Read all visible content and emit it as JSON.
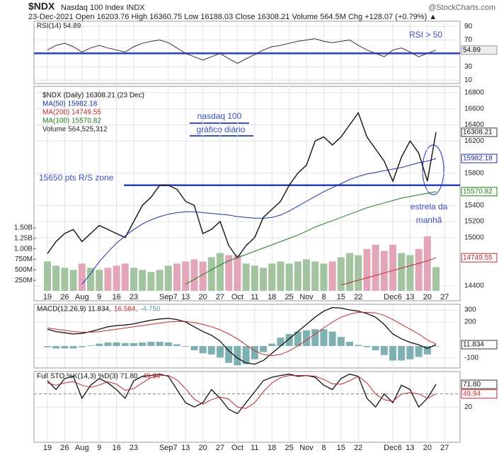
{
  "header": {
    "symbol": "$NDX",
    "name": "Nasdaq 100 Index INDX",
    "watermark": "@StockCharts.com",
    "quote": "23-Dec-2021   Open 16203.76  High 16360.75  Low 16188.03  Close 16308.21  Volume 564.5M  Chg +128.07 (+0.79%) ▲"
  },
  "chart_data": [
    {
      "type": "line",
      "label": "RSI(14) 54.89",
      "ylim": [
        5,
        98
      ],
      "yticks": [
        90,
        70,
        30,
        10
      ],
      "reference_line": 50,
      "reference_color": "#2b3fbf",
      "annotation": "RSI > 50",
      "series": [
        {
          "color": "#333333",
          "values": [
            55,
            62,
            65,
            60,
            52,
            58,
            62,
            58,
            55,
            52,
            60,
            65,
            68,
            70,
            66,
            58,
            50,
            45,
            40,
            45,
            50,
            42,
            35,
            42,
            48,
            55,
            60,
            62,
            65,
            68,
            70,
            72,
            68,
            66,
            68,
            70,
            62,
            55,
            50,
            45,
            55,
            58,
            52,
            45,
            50,
            54.89,
            null
          ]
        }
      ]
    },
    {
      "type": "line",
      "categories": [
        "19",
        null,
        "26",
        null,
        "Aug",
        null,
        "9",
        null,
        "16",
        null,
        "23",
        null,
        null,
        null,
        "Sep7",
        null,
        "13",
        null,
        "20",
        null,
        "27",
        null,
        "Oct",
        null,
        "11",
        null,
        "18",
        null,
        "25",
        null,
        "Nov",
        null,
        "8",
        null,
        "15",
        null,
        "22",
        null,
        null,
        null,
        "Dec6",
        null,
        "13",
        null,
        "20",
        null,
        "27"
      ],
      "ylim": [
        14215,
        16879
      ],
      "yticks": [
        16800,
        16600,
        16400,
        16200,
        15800,
        15400,
        15200,
        15000,
        14400
      ],
      "reference_line": 15650,
      "reference_color": "#2b3fbf",
      "annotations": [
        "nasdaq 100",
        "gráfico diário",
        "15650 pts R/S zone",
        "estrela da",
        "manhã"
      ],
      "series": [
        {
          "name": "$NDX (Daily) 16308.21 (23 Dec)",
          "color": "#111111",
          "values": [
            14800,
            14950,
            15050,
            15100,
            14950,
            15050,
            15150,
            15100,
            15050,
            15000,
            15200,
            15400,
            15500,
            15650,
            15650,
            15600,
            15450,
            15400,
            15050,
            15100,
            15200,
            14900,
            14750,
            14900,
            15000,
            15250,
            15350,
            15450,
            15650,
            15800,
            15900,
            16200,
            16250,
            16150,
            16250,
            16400,
            16550,
            16250,
            16100,
            15950,
            15700,
            16000,
            16200,
            16050,
            15700,
            16308.21,
            null
          ]
        },
        {
          "name": "MA(50) 15982.18",
          "color": "#1a2fa0",
          "values": [
            null,
            null,
            null,
            null,
            14420,
            14550,
            14700,
            14820,
            14930,
            15020,
            15100,
            15170,
            15220,
            15260,
            15290,
            15310,
            15320,
            15320,
            15310,
            15300,
            15290,
            15280,
            15260,
            15250,
            15240,
            15240,
            15250,
            15280,
            15330,
            15390,
            15450,
            15510,
            15570,
            15620,
            15670,
            15720,
            15760,
            15790,
            15810,
            15830,
            15850,
            15870,
            15900,
            15930,
            15950,
            15982.18,
            null
          ]
        },
        {
          "name": "MA(200) 14749.55",
          "color": "#c0282e",
          "values": [
            null,
            null,
            null,
            null,
            null,
            null,
            null,
            null,
            null,
            null,
            null,
            null,
            null,
            null,
            null,
            null,
            null,
            null,
            null,
            null,
            null,
            null,
            null,
            null,
            null,
            null,
            null,
            null,
            null,
            null,
            null,
            null,
            null,
            null,
            14410,
            14440,
            14470,
            14500,
            14530,
            14560,
            14590,
            14620,
            14650,
            14680,
            14710,
            14749.55,
            null
          ]
        },
        {
          "name": "MA(100) 15570.82",
          "color": "#1e7b1e",
          "values": [
            null,
            null,
            null,
            null,
            null,
            null,
            null,
            null,
            null,
            null,
            null,
            null,
            null,
            null,
            null,
            null,
            14420,
            14480,
            14540,
            14600,
            14660,
            14710,
            14750,
            14790,
            14830,
            14870,
            14910,
            14950,
            14990,
            15030,
            15080,
            15130,
            15170,
            15210,
            15250,
            15290,
            15330,
            15370,
            15400,
            15430,
            15460,
            15490,
            15510,
            15530,
            15550,
            15570.82,
            null
          ]
        }
      ]
    },
    {
      "type": "bar",
      "ylim": [
        0,
        4873
      ],
      "up_color": "#a3c4a0",
      "down_color": "#e3a6b8",
      "yticks": [
        {
          "value": 250,
          "label": "250M"
        },
        {
          "value": 500,
          "label": "500M"
        },
        {
          "value": 750,
          "label": "750M"
        },
        {
          "value": 1000,
          "label": "1.00B"
        },
        {
          "value": 1250,
          "label": "1.25B"
        },
        {
          "value": 1500,
          "label": "1.50B"
        }
      ],
      "series": [
        {
          "name": "Volume 564,525,312",
          "values": [
            700,
            600,
            550,
            500,
            650,
            550,
            500,
            550,
            600,
            650,
            550,
            500,
            450,
            500,
            600,
            650,
            700,
            750,
            700,
            800,
            900,
            850,
            850,
            650,
            600,
            550,
            650,
            700,
            650,
            700,
            750,
            700,
            650,
            700,
            800,
            900,
            850,
            1000,
            1100,
            950,
            1100,
            900,
            850,
            1000,
            1300,
            564.5,
            null
          ]
        }
      ]
    },
    {
      "type": "line",
      "ylim": [
        -182,
        347
      ],
      "yticks": [
        300,
        200,
        -100
      ],
      "label_parts": [
        "MACD(12,26,9) 11.834,",
        "16.584,",
        "-4.750"
      ],
      "series": [
        {
          "color": "#111111",
          "values": [
            140,
            120,
            110,
            100,
            105,
            120,
            140,
            160,
            170,
            175,
            185,
            200,
            215,
            225,
            230,
            220,
            200,
            160,
            120,
            90,
            40,
            -40,
            -100,
            -140,
            -150,
            -120,
            -60,
            0,
            60,
            120,
            180,
            240,
            290,
            320,
            315,
            300,
            290,
            270,
            240,
            180,
            100,
            60,
            30,
            10,
            -20,
            11.834,
            null
          ]
        },
        {
          "color": "#c0282e",
          "values": [
            150,
            140,
            130,
            120,
            115,
            115,
            120,
            130,
            140,
            150,
            160,
            170,
            180,
            190,
            200,
            205,
            205,
            195,
            180,
            160,
            135,
            100,
            60,
            10,
            -40,
            -70,
            -80,
            -70,
            -40,
            0,
            50,
            100,
            150,
            200,
            240,
            265,
            280,
            280,
            275,
            255,
            220,
            180,
            140,
            100,
            50,
            16.584,
            null
          ]
        },
        {
          "type": "bar",
          "color": "#5f9ea0",
          "values": [
            -10,
            -20,
            -20,
            -20,
            -10,
            5,
            20,
            30,
            30,
            25,
            25,
            30,
            35,
            35,
            30,
            15,
            -5,
            -35,
            -60,
            -70,
            -95,
            -140,
            -160,
            -150,
            -110,
            -50,
            20,
            70,
            100,
            120,
            130,
            140,
            140,
            120,
            75,
            35,
            10,
            -10,
            -35,
            -75,
            -120,
            -120,
            -110,
            -90,
            -70,
            -4.75,
            null
          ]
        }
      ]
    },
    {
      "type": "line",
      "ylim": [
        -60,
        101
      ],
      "yticks": [
        20
      ],
      "reference_line": 50,
      "reference_color": "#888888",
      "label_parts": [
        "Full STO %K(14,3) %D(3) 71.80,",
        "49.94"
      ],
      "series": [
        {
          "color": "#111111",
          "values": [
            80,
            60,
            85,
            90,
            40,
            70,
            85,
            75,
            60,
            40,
            80,
            90,
            92,
            95,
            90,
            60,
            30,
            20,
            30,
            60,
            40,
            15,
            5,
            30,
            55,
            80,
            88,
            92,
            95,
            90,
            92,
            88,
            70,
            60,
            85,
            95,
            90,
            40,
            20,
            50,
            30,
            70,
            60,
            20,
            40,
            71.8,
            null
          ],
          "value_labels": [
            null,
            null,
            null,
            null,
            null,
            null,
            null,
            null,
            null,
            null,
            null,
            null,
            null,
            null,
            null,
            null,
            null,
            null,
            null,
            null,
            null,
            null,
            null,
            null,
            null,
            null,
            null,
            null,
            null,
            null,
            null,
            null,
            null,
            null,
            null,
            null,
            null,
            null,
            null,
            null,
            null,
            null,
            null,
            null,
            null,
            "71.80",
            null
          ]
        },
        {
          "color": "#c0282e",
          "values": [
            75,
            70,
            75,
            78,
            70,
            65,
            70,
            78,
            72,
            58,
            62,
            75,
            87,
            92,
            92,
            82,
            62,
            38,
            27,
            37,
            43,
            38,
            20,
            17,
            30,
            55,
            75,
            87,
            92,
            92,
            92,
            90,
            83,
            73,
            72,
            80,
            90,
            75,
            50,
            37,
            33,
            50,
            53,
            50,
            40,
            49.94,
            null
          ]
        }
      ]
    }
  ]
}
